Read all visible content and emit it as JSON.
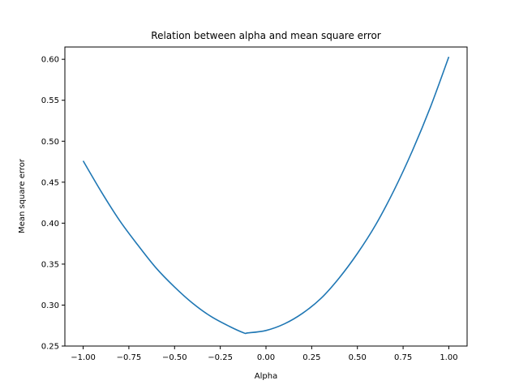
{
  "chart_data": {
    "type": "line",
    "title": "Relation between alpha and mean square error",
    "xlabel": "Alpha",
    "ylabel": "Mean square error",
    "xlim": [
      -1.1,
      1.1
    ],
    "ylim": [
      0.25,
      0.615
    ],
    "grid": false,
    "xticks": [
      -1.0,
      -0.75,
      -0.5,
      -0.25,
      0.0,
      0.25,
      0.5,
      0.75,
      1.0
    ],
    "xtick_labels": [
      "−1.00",
      "−0.75",
      "−0.50",
      "−0.25",
      "0.00",
      "0.25",
      "0.50",
      "0.75",
      "1.00"
    ],
    "yticks": [
      0.25,
      0.3,
      0.35,
      0.4,
      0.45,
      0.5,
      0.55,
      0.6
    ],
    "ytick_labels": [
      "0.25",
      "0.30",
      "0.35",
      "0.40",
      "0.45",
      "0.50",
      "0.55",
      "0.60"
    ],
    "series": [
      {
        "color": "#1f77b4",
        "x": [
          -1.0,
          -0.9,
          -0.8,
          -0.7,
          -0.6,
          -0.5,
          -0.4,
          -0.3,
          -0.2,
          -0.12,
          -0.1,
          0.0,
          0.1,
          0.2,
          0.3,
          0.4,
          0.5,
          0.6,
          0.7,
          0.8,
          0.9,
          1.0
        ],
        "y": [
          0.476,
          0.438,
          0.403,
          0.373,
          0.345,
          0.322,
          0.302,
          0.286,
          0.274,
          0.266,
          0.266,
          0.269,
          0.277,
          0.29,
          0.308,
          0.333,
          0.363,
          0.398,
          0.44,
          0.488,
          0.542,
          0.603
        ]
      }
    ]
  }
}
